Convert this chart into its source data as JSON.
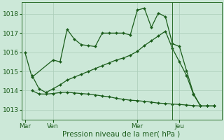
{
  "background_color": "#cce8d8",
  "plot_bg_color": "#cce8d8",
  "grid_color": "#aaccb8",
  "line_color": "#1a5c1a",
  "ylim": [
    1012.5,
    1018.6
  ],
  "yticks": [
    1013,
    1014,
    1015,
    1016,
    1017,
    1018
  ],
  "xlabel": "Pression niveau de la mer( hPa )",
  "xlabel_fontsize": 7.5,
  "tick_fontsize": 6.5,
  "day_labels": [
    "Mar",
    "Ven",
    "Mer",
    "Jeu"
  ],
  "day_positions": [
    0,
    4,
    16,
    22
  ],
  "xlim": [
    -0.5,
    28
  ],
  "series1_x": [
    0,
    1,
    4,
    5,
    6,
    7,
    8,
    9,
    10,
    11,
    12,
    13,
    14,
    15,
    16,
    17,
    18,
    19,
    20,
    21,
    22,
    23,
    24,
    25,
    26,
    27
  ],
  "series1_y": [
    1016.0,
    1014.7,
    1015.6,
    1015.5,
    1017.2,
    1016.7,
    1016.4,
    1016.35,
    1016.3,
    1017.0,
    1017.0,
    1017.0,
    1017.0,
    1016.9,
    1018.2,
    1018.3,
    1017.3,
    1018.05,
    1017.85,
    1016.45,
    1016.3,
    1015.05,
    1013.85,
    1013.2,
    1013.2,
    1013.2
  ],
  "series2_x": [
    1,
    2,
    3,
    4,
    5,
    6,
    7,
    8,
    9,
    10,
    11,
    12,
    13,
    14,
    15,
    16,
    17,
    18,
    19,
    20,
    21,
    22,
    23,
    24,
    25,
    26,
    27
  ],
  "series2_y": [
    1014.8,
    1014.1,
    1013.9,
    1014.1,
    1014.3,
    1014.55,
    1014.7,
    1014.85,
    1015.0,
    1015.15,
    1015.3,
    1015.45,
    1015.6,
    1015.7,
    1015.85,
    1016.05,
    1016.35,
    1016.6,
    1016.85,
    1017.1,
    1016.2,
    1015.5,
    1014.8,
    1013.8,
    1013.2,
    1013.2,
    1013.2
  ],
  "series3_x": [
    1,
    2,
    3,
    4,
    5,
    6,
    7,
    8,
    9,
    10,
    11,
    12,
    13,
    14,
    15,
    16,
    17,
    18,
    19,
    20,
    21,
    22,
    23,
    24,
    25,
    26,
    27
  ],
  "series3_y": [
    1014.0,
    1013.83,
    1013.82,
    1013.85,
    1013.9,
    1013.92,
    1013.88,
    1013.85,
    1013.82,
    1013.78,
    1013.72,
    1013.68,
    1013.6,
    1013.55,
    1013.5,
    1013.48,
    1013.44,
    1013.4,
    1013.35,
    1013.33,
    1013.3,
    1013.28,
    1013.25,
    1013.22,
    1013.2,
    1013.2,
    1013.2
  ],
  "vline_x": 21,
  "vline_color": "#2a6e2a",
  "marker_size": 2.0,
  "line_width": 0.9
}
